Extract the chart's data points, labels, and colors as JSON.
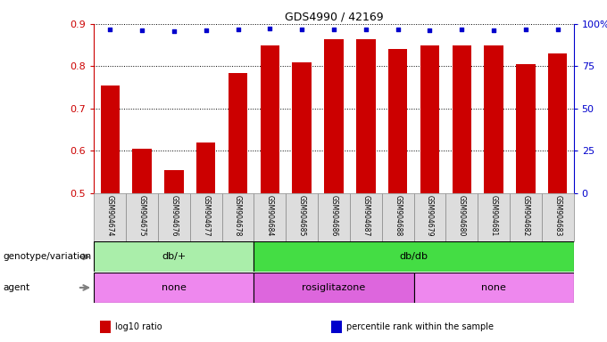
{
  "title": "GDS4990 / 42169",
  "samples": [
    "GSM904674",
    "GSM904675",
    "GSM904676",
    "GSM904677",
    "GSM904678",
    "GSM904684",
    "GSM904685",
    "GSM904686",
    "GSM904687",
    "GSM904688",
    "GSM904679",
    "GSM904680",
    "GSM904681",
    "GSM904682",
    "GSM904683"
  ],
  "log10_ratio": [
    0.755,
    0.605,
    0.555,
    0.62,
    0.785,
    0.85,
    0.81,
    0.865,
    0.865,
    0.84,
    0.85,
    0.85,
    0.85,
    0.805,
    0.83
  ],
  "percentile_pct": [
    97,
    96,
    95.5,
    96,
    97,
    97.5,
    97,
    97,
    97,
    97,
    96.5,
    97,
    96.5,
    97,
    97
  ],
  "ylim_left": [
    0.5,
    0.9
  ],
  "ylim_right": [
    0,
    100
  ],
  "bar_color": "#cc0000",
  "dot_color": "#0000cc",
  "bar_width": 0.6,
  "yticks_left": [
    0.5,
    0.6,
    0.7,
    0.8,
    0.9
  ],
  "yticks_right": [
    0,
    25,
    50,
    75,
    100
  ],
  "ytick_labels_right": [
    "0",
    "25",
    "50",
    "75",
    "100%"
  ],
  "left_axis_color": "#cc0000",
  "right_axis_color": "#0000cc",
  "genotype_groups": [
    {
      "label": "db/+",
      "start": 0,
      "end": 5,
      "color": "#aaeeaa"
    },
    {
      "label": "db/db",
      "start": 5,
      "end": 15,
      "color": "#44dd44"
    }
  ],
  "agent_groups": [
    {
      "label": "none",
      "start": 0,
      "end": 5,
      "color": "#ee88ee"
    },
    {
      "label": "rosiglitazone",
      "start": 5,
      "end": 10,
      "color": "#dd66dd"
    },
    {
      "label": "none",
      "start": 10,
      "end": 15,
      "color": "#ee88ee"
    }
  ],
  "genotype_label": "genotype/variation",
  "agent_label": "agent",
  "legend_items": [
    {
      "color": "#cc0000",
      "label": "log10 ratio"
    },
    {
      "color": "#0000cc",
      "label": "percentile rank within the sample"
    }
  ],
  "bg_color": "#ffffff",
  "sample_label_bg": "#dddddd"
}
